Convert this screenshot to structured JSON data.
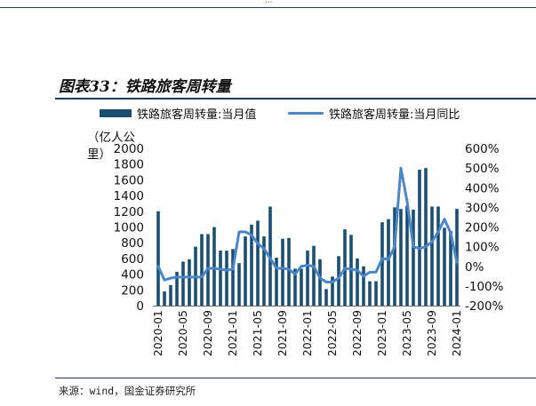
{
  "header": {
    "mark": "..."
  },
  "figure": {
    "title": "图表33：铁路旅客周转量"
  },
  "footer": {
    "source": "来源：wind，国金证券研究所"
  },
  "chart_data": {
    "type": "bar+line",
    "title": "图表33：铁路旅客周转量",
    "y_left_label": "（亿人公里）",
    "y_left_range": [
      0,
      2000
    ],
    "y_left_ticks": [
      "0",
      "200",
      "400",
      "600",
      "800",
      "1000",
      "1200",
      "1400",
      "1600",
      "1800",
      "2000"
    ],
    "y_right_range": [
      -200,
      600
    ],
    "y_right_ticks": [
      "-200%",
      "-100%",
      "0%",
      "100%",
      "200%",
      "300%",
      "400%",
      "500%",
      "600%"
    ],
    "x_ticks": [
      "2020-01",
      "2020-05",
      "2020-09",
      "2021-01",
      "2021-05",
      "2021-09",
      "2022-01",
      "2022-05",
      "2022-09",
      "2023-01",
      "2023-05",
      "2023-09",
      "2024-01"
    ],
    "legend_position": "top",
    "grid": false,
    "colors": {
      "bar": "#1b4f72",
      "line": "#4a86c8"
    },
    "categories": [
      "2020-01",
      "2020-02",
      "2020-03",
      "2020-04",
      "2020-05",
      "2020-06",
      "2020-07",
      "2020-08",
      "2020-09",
      "2020-10",
      "2020-11",
      "2020-12",
      "2021-01",
      "2021-02",
      "2021-03",
      "2021-04",
      "2021-05",
      "2021-06",
      "2021-07",
      "2021-08",
      "2021-09",
      "2021-10",
      "2021-11",
      "2021-12",
      "2022-01",
      "2022-02",
      "2022-03",
      "2022-04",
      "2022-05",
      "2022-06",
      "2022-07",
      "2022-08",
      "2022-09",
      "2022-10",
      "2022-11",
      "2022-12",
      "2023-01",
      "2023-02",
      "2023-03",
      "2023-04",
      "2023-05",
      "2023-06",
      "2023-07",
      "2023-08",
      "2023-09",
      "2023-10",
      "2023-11",
      "2023-12",
      "2024-01"
    ],
    "series": [
      {
        "name": "铁路旅客周转量:当月值",
        "kind": "bar",
        "axis": "left",
        "values": [
          1200,
          180,
          260,
          430,
          560,
          590,
          750,
          910,
          910,
          1000,
          700,
          700,
          720,
          540,
          880,
          1030,
          1080,
          880,
          1260,
          610,
          850,
          860,
          470,
          470,
          700,
          760,
          590,
          210,
          370,
          630,
          970,
          900,
          600,
          500,
          310,
          310,
          1060,
          1100,
          1250,
          1230,
          1270,
          1220,
          1730,
          1750,
          1260,
          1260,
          990,
          950,
          1230
        ]
      },
      {
        "name": "铁路旅客周转量:当月同比",
        "kind": "line",
        "axis": "right",
        "values": [
          0,
          -70,
          -60,
          -55,
          -55,
          -55,
          -55,
          -55,
          -10,
          -10,
          -15,
          -20,
          -15,
          175,
          175,
          160,
          115,
          90,
          40,
          -10,
          -10,
          -15,
          -40,
          0,
          5,
          0,
          -60,
          -80,
          -80,
          -60,
          -10,
          -15,
          -20,
          -50,
          -30,
          -30,
          40,
          35,
          100,
          500,
          330,
          100,
          90,
          100,
          125,
          175,
          240,
          170,
          20
        ]
      }
    ]
  }
}
